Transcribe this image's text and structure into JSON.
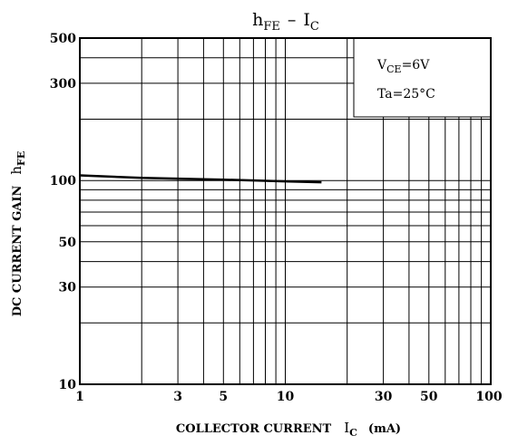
{
  "chart_data": {
    "type": "line",
    "title_main": "h",
    "title_main_sub": "FE",
    "title_sep": "–",
    "title_right": "I",
    "title_right_sub": "C",
    "xlabel_text": "COLLECTOR CURRENT",
    "xlabel_symbol": "I",
    "xlabel_symbol_sub": "C",
    "xlabel_unit": "(mA)",
    "ylabel_text": "DC CURRENT GAIN",
    "ylabel_symbol": "h",
    "ylabel_symbol_sub": "FE",
    "x_scale": "log",
    "y_scale": "log",
    "xlim": [
      1,
      100
    ],
    "ylim": [
      10,
      500
    ],
    "x_ticks": [
      {
        "value": 1,
        "label": "1"
      },
      {
        "value": 3,
        "label": "3"
      },
      {
        "value": 5,
        "label": "5"
      },
      {
        "value": 10,
        "label": "10"
      },
      {
        "value": 30,
        "label": "30"
      },
      {
        "value": 50,
        "label": "50"
      },
      {
        "value": 100,
        "label": "100"
      }
    ],
    "y_ticks": [
      {
        "value": 10,
        "label": "10"
      },
      {
        "value": 30,
        "label": "30"
      },
      {
        "value": 50,
        "label": "50"
      },
      {
        "value": 100,
        "label": "100"
      },
      {
        "value": 300,
        "label": "300"
      },
      {
        "value": 500,
        "label": "500"
      }
    ],
    "grid": true,
    "annotation": {
      "vce_label": "V",
      "vce_sub": "CE",
      "vce_value": "=6V",
      "ta_text": "Ta=25°C",
      "placement": "top-right"
    },
    "series": [
      {
        "x": [
          1,
          2,
          5,
          10,
          15
        ],
        "y": [
          106,
          103,
          101,
          99,
          98
        ]
      }
    ]
  }
}
